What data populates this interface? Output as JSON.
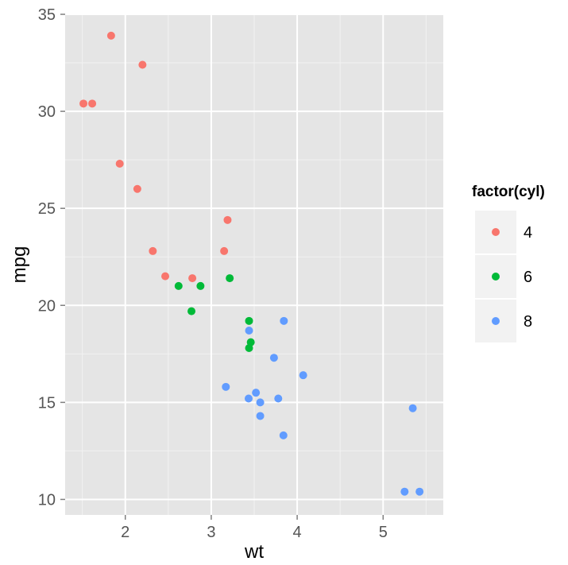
{
  "chart_data": {
    "type": "scatter",
    "xlabel": "wt",
    "ylabel": "mpg",
    "xlim": [
      1.3,
      5.7
    ],
    "ylim": [
      9.2,
      35
    ],
    "x_ticks": [
      2,
      3,
      4,
      5
    ],
    "y_ticks": [
      10,
      15,
      20,
      25,
      30,
      35
    ],
    "x_tick_labels": [
      "2",
      "3",
      "4",
      "5"
    ],
    "y_tick_labels": [
      "10",
      "15",
      "20",
      "25",
      "30",
      "35"
    ],
    "grid": true,
    "legend": {
      "title": "factor(cyl)",
      "placement": "right"
    },
    "series": [
      {
        "name": "4",
        "color": "#F8766D",
        "points": [
          [
            2.32,
            22.8
          ],
          [
            3.19,
            24.4
          ],
          [
            3.15,
            22.8
          ],
          [
            2.2,
            32.4
          ],
          [
            1.615,
            30.4
          ],
          [
            1.835,
            33.9
          ],
          [
            2.465,
            21.5
          ],
          [
            1.935,
            27.3
          ],
          [
            2.14,
            26.0
          ],
          [
            1.513,
            30.4
          ],
          [
            2.78,
            21.4
          ]
        ]
      },
      {
        "name": "6",
        "color": "#00BA38",
        "points": [
          [
            2.62,
            21.0
          ],
          [
            2.875,
            21.0
          ],
          [
            3.215,
            21.4
          ],
          [
            3.46,
            18.1
          ],
          [
            3.44,
            19.2
          ],
          [
            3.44,
            17.8
          ],
          [
            2.77,
            19.7
          ]
        ]
      },
      {
        "name": "8",
        "color": "#619CFF",
        "points": [
          [
            3.44,
            18.7
          ],
          [
            3.57,
            14.3
          ],
          [
            4.07,
            16.4
          ],
          [
            3.73,
            17.3
          ],
          [
            3.78,
            15.2
          ],
          [
            5.25,
            10.4
          ],
          [
            5.424,
            10.4
          ],
          [
            5.345,
            14.7
          ],
          [
            3.52,
            15.5
          ],
          [
            3.435,
            15.2
          ],
          [
            3.84,
            13.3
          ],
          [
            3.845,
            19.2
          ],
          [
            3.17,
            15.8
          ],
          [
            3.57,
            15.0
          ]
        ]
      }
    ]
  }
}
